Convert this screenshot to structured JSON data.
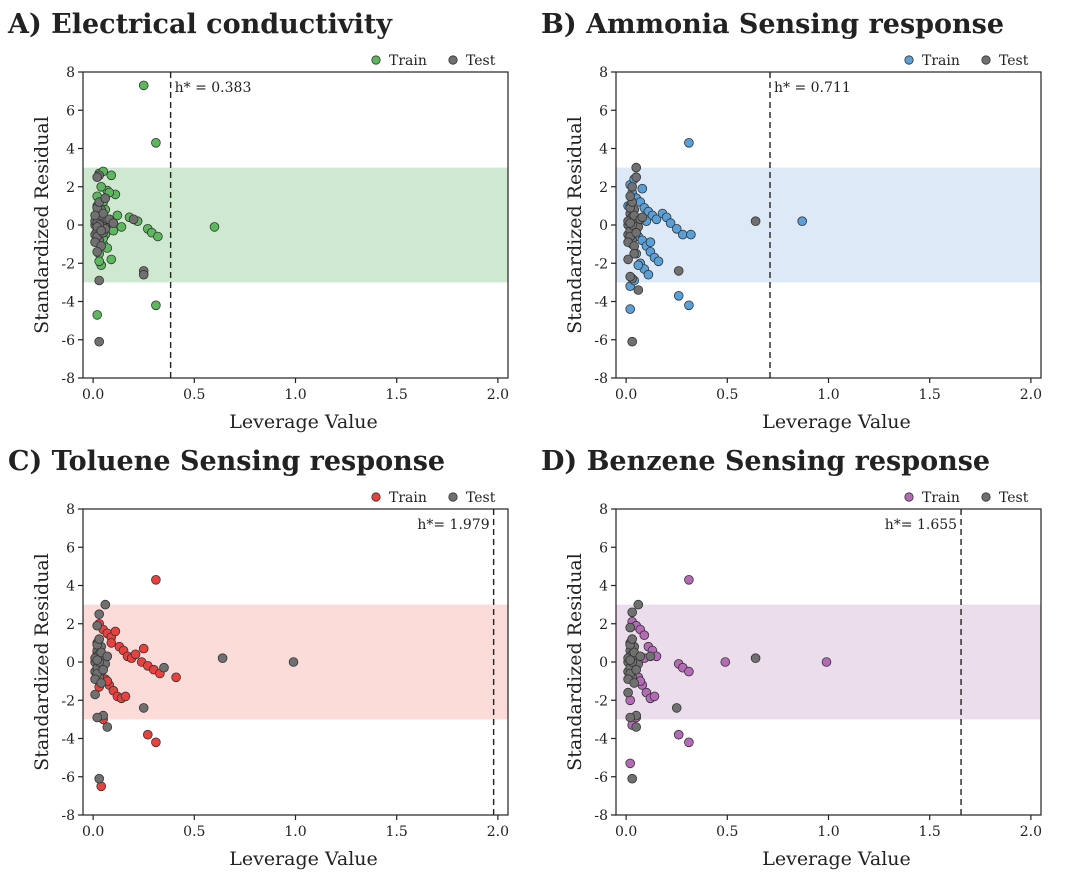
{
  "figure": {
    "shared_axes": {
      "xlabel": "Leverage Value",
      "ylabel": "Standardized Residual",
      "xticks": [
        "0.0",
        "0.5",
        "1.0",
        "1.5",
        "2.0"
      ],
      "yticks": [
        "8",
        "6",
        "4",
        "2",
        "0",
        "-2",
        "-4",
        "-6",
        "-8"
      ]
    },
    "legend": {
      "train_label": "Train",
      "test_label": "Test"
    }
  },
  "chart_data": [
    {
      "type": "scatter",
      "title": "A) Electrical conductivity",
      "xlabel": "Leverage Value",
      "ylabel": "Standardized Residual",
      "xlim": [
        -0.05,
        2.05
      ],
      "ylim": [
        -8,
        8
      ],
      "band": [
        -3,
        3
      ],
      "band_color": "#cfe9d0",
      "h_star": 0.383,
      "h_label": "h* = 0.383",
      "legend_position": "top-right",
      "series": [
        {
          "name": "Train",
          "color": "#5cb85c",
          "x": [
            0.25,
            0.31,
            0.03,
            0.05,
            0.09,
            0.07,
            0.11,
            0.02,
            0.05,
            0.06,
            0.08,
            0.12,
            0.04,
            0.03,
            0.06,
            0.1,
            0.14,
            0.02,
            0.05,
            0.07,
            0.09,
            0.03,
            0.04,
            0.18,
            0.22,
            0.27,
            0.29,
            0.32,
            0.6,
            0.04,
            0.06,
            0.02,
            0.03,
            0.05,
            0.08,
            0.03,
            0.04,
            0.31,
            0.02
          ],
          "y": [
            7.3,
            4.3,
            2.7,
            2.8,
            2.6,
            1.8,
            1.6,
            1.5,
            1.2,
            0.8,
            1.7,
            0.5,
            0.3,
            -0.2,
            -0.5,
            -0.3,
            -0.1,
            -0.8,
            -1.0,
            -1.2,
            -1.8,
            -1.5,
            -2.1,
            0.4,
            0.2,
            -0.2,
            -0.4,
            -0.6,
            -0.1,
            0.6,
            0.1,
            0.9,
            -1.9,
            -0.7,
            0.3,
            0.0,
            2.0,
            -4.2,
            -4.7
          ]
        },
        {
          "name": "Test",
          "color": "#707070",
          "x": [
            0.01,
            0.02,
            0.03,
            0.02,
            0.04,
            0.01,
            0.03,
            0.02,
            0.05,
            0.06,
            0.04,
            0.02,
            0.03,
            0.01,
            0.02,
            0.04,
            0.03,
            0.07,
            0.05,
            0.02,
            0.01,
            0.03,
            0.04,
            0.02,
            0.05,
            0.06,
            0.03,
            0.02,
            0.08,
            0.1,
            0.04,
            0.03,
            0.02,
            0.06,
            0.25,
            0.25,
            0.2,
            0.03,
            0.03,
            0.02,
            0.01
          ],
          "y": [
            0.0,
            0.3,
            -0.2,
            0.6,
            0.1,
            -0.5,
            0.4,
            -0.3,
            0.2,
            -0.1,
            0.8,
            1.0,
            -0.8,
            0.2,
            -0.6,
            0.5,
            0.0,
            0.3,
            -0.4,
            0.9,
            -0.9,
            1.2,
            -1.1,
            0.1,
            0.6,
            -0.2,
            0.0,
            -0.1,
            0.3,
            0.1,
            -0.3,
            2.6,
            2.5,
            1.4,
            -2.4,
            -2.6,
            0.3,
            -2.9,
            -6.1,
            -1.4,
            0.5
          ]
        }
      ]
    },
    {
      "type": "scatter",
      "title": "B) Ammonia Sensing response",
      "xlabel": "Leverage Value",
      "ylabel": "Standardized Residual",
      "xlim": [
        -0.05,
        2.05
      ],
      "ylim": [
        -8,
        8
      ],
      "band": [
        -3,
        3
      ],
      "band_color": "#dde9f6",
      "h_star": 0.711,
      "h_label": "h* = 0.711",
      "legend_position": "top-right",
      "series": [
        {
          "name": "Train",
          "color": "#5a9fd6",
          "x": [
            0.31,
            0.87,
            0.02,
            0.03,
            0.05,
            0.07,
            0.09,
            0.11,
            0.13,
            0.15,
            0.04,
            0.06,
            0.08,
            0.1,
            0.12,
            0.14,
            0.16,
            0.18,
            0.2,
            0.22,
            0.25,
            0.28,
            0.32,
            0.03,
            0.05,
            0.07,
            0.09,
            0.11,
            0.02,
            0.04,
            0.06,
            0.26,
            0.31,
            0.02,
            0.01,
            0.08,
            0.1,
            0.12,
            0.04,
            0.03
          ],
          "y": [
            4.3,
            0.2,
            2.1,
            1.7,
            1.4,
            1.2,
            0.9,
            0.7,
            0.5,
            0.3,
            -0.3,
            -0.6,
            -0.8,
            -1.1,
            -1.4,
            -1.7,
            -1.9,
            0.6,
            0.4,
            0.1,
            -0.2,
            -0.5,
            -0.5,
            -1.0,
            -1.5,
            -2.0,
            -2.3,
            -2.6,
            -3.2,
            -2.9,
            -2.1,
            -3.7,
            -4.2,
            -4.4,
            1.0,
            1.9,
            0.2,
            -0.9,
            2.4,
            0.8
          ]
        },
        {
          "name": "Test",
          "color": "#707070",
          "x": [
            0.64,
            0.01,
            0.02,
            0.03,
            0.02,
            0.04,
            0.01,
            0.03,
            0.02,
            0.05,
            0.06,
            0.04,
            0.02,
            0.03,
            0.01,
            0.02,
            0.04,
            0.03,
            0.07,
            0.05,
            0.02,
            0.01,
            0.03,
            0.04,
            0.02,
            0.05,
            0.06,
            0.03,
            0.02,
            0.05,
            0.03,
            0.26,
            0.02,
            0.04,
            0.03,
            0.01,
            0.08
          ],
          "y": [
            0.2,
            0.0,
            0.3,
            -0.2,
            0.6,
            0.1,
            -0.5,
            0.4,
            -0.3,
            0.2,
            -0.1,
            0.8,
            1.0,
            -0.8,
            0.2,
            -0.6,
            0.5,
            0.0,
            0.3,
            -0.4,
            0.9,
            -0.9,
            1.2,
            -1.1,
            0.1,
            3.0,
            -3.4,
            -2.8,
            -2.7,
            2.5,
            -6.1,
            -2.4,
            1.5,
            -1.5,
            2.0,
            -1.8,
            0.4
          ]
        }
      ]
    },
    {
      "type": "scatter",
      "title": "C) Toluene Sensing response",
      "xlabel": "Leverage Value",
      "ylabel": "Standardized Residual",
      "xlim": [
        -0.05,
        2.05
      ],
      "ylim": [
        -8,
        8
      ],
      "band": [
        -3,
        3
      ],
      "band_color": "#fbdcd9",
      "h_star": 1.979,
      "h_label": "h*= 1.979",
      "legend_position": "top-right",
      "series": [
        {
          "name": "Train",
          "color": "#e8413e",
          "x": [
            0.31,
            0.03,
            0.05,
            0.07,
            0.09,
            0.11,
            0.13,
            0.15,
            0.17,
            0.19,
            0.21,
            0.24,
            0.27,
            0.3,
            0.33,
            0.41,
            0.04,
            0.06,
            0.08,
            0.1,
            0.12,
            0.14,
            0.16,
            0.25,
            0.27,
            0.31,
            0.04,
            0.05,
            0.02,
            0.07,
            0.09,
            0.03
          ],
          "y": [
            4.3,
            2.0,
            1.7,
            1.5,
            1.3,
            1.6,
            0.8,
            0.6,
            0.3,
            0.2,
            0.4,
            0.0,
            -0.2,
            -0.4,
            -0.6,
            -0.8,
            -0.5,
            -0.9,
            -1.2,
            -1.5,
            -1.8,
            -1.9,
            -1.8,
            0.7,
            -3.8,
            -4.2,
            -6.5,
            -3.0,
            0.5,
            -1.0,
            1.0,
            -1.3
          ]
        },
        {
          "name": "Test",
          "color": "#707070",
          "x": [
            0.64,
            0.99,
            0.01,
            0.02,
            0.03,
            0.02,
            0.04,
            0.01,
            0.03,
            0.02,
            0.05,
            0.06,
            0.04,
            0.02,
            0.03,
            0.01,
            0.02,
            0.04,
            0.03,
            0.07,
            0.05,
            0.02,
            0.01,
            0.03,
            0.04,
            0.02,
            0.06,
            0.03,
            0.05,
            0.02,
            0.03,
            0.25,
            0.35,
            0.02,
            0.07,
            0.01
          ],
          "y": [
            0.2,
            0.0,
            0.0,
            0.3,
            -0.2,
            0.6,
            0.1,
            -0.5,
            0.4,
            -0.3,
            0.2,
            -0.1,
            0.8,
            1.0,
            -0.8,
            0.2,
            -0.6,
            0.5,
            0.0,
            0.3,
            -0.4,
            0.9,
            -0.9,
            1.2,
            -1.1,
            0.1,
            3.0,
            2.5,
            -2.8,
            -2.9,
            -6.1,
            -2.4,
            -0.3,
            1.9,
            -3.4,
            -1.7
          ]
        }
      ]
    },
    {
      "type": "scatter",
      "title": "D) Benzene Sensing response",
      "xlabel": "Leverage Value",
      "ylabel": "Standardized Residual",
      "xlim": [
        -0.05,
        2.05
      ],
      "ylim": [
        -8,
        8
      ],
      "band": [
        -3,
        3
      ],
      "band_color": "#ecdded",
      "h_star": 1.655,
      "h_label": "h*= 1.655",
      "legend_position": "top-right",
      "series": [
        {
          "name": "Train",
          "color": "#b36bb5",
          "x": [
            0.31,
            0.49,
            0.99,
            0.03,
            0.05,
            0.07,
            0.09,
            0.11,
            0.13,
            0.15,
            0.04,
            0.06,
            0.08,
            0.1,
            0.12,
            0.14,
            0.26,
            0.28,
            0.31,
            0.26,
            0.31,
            0.02,
            0.03,
            0.05,
            0.02,
            0.07,
            0.09
          ],
          "y": [
            4.3,
            0.0,
            0.0,
            2.1,
            1.9,
            1.7,
            1.4,
            0.8,
            0.6,
            0.3,
            -0.4,
            -0.8,
            -1.2,
            -1.6,
            -1.9,
            -1.8,
            -0.1,
            -0.3,
            -0.5,
            -3.8,
            -4.2,
            -5.3,
            -3.3,
            -2.9,
            -2.0,
            -1.0,
            0.2
          ]
        },
        {
          "name": "Test",
          "color": "#707070",
          "x": [
            0.64,
            0.01,
            0.02,
            0.03,
            0.02,
            0.04,
            0.01,
            0.03,
            0.02,
            0.05,
            0.06,
            0.04,
            0.02,
            0.03,
            0.01,
            0.02,
            0.04,
            0.03,
            0.07,
            0.05,
            0.02,
            0.01,
            0.03,
            0.04,
            0.02,
            0.06,
            0.03,
            0.05,
            0.02,
            0.03,
            0.25,
            0.12,
            0.02,
            0.05,
            0.01
          ],
          "y": [
            0.2,
            0.0,
            0.3,
            -0.2,
            0.6,
            0.1,
            -0.5,
            0.4,
            -0.3,
            0.2,
            -0.1,
            0.8,
            1.0,
            -0.8,
            0.2,
            -0.6,
            0.5,
            0.0,
            0.3,
            -0.4,
            0.9,
            -0.9,
            1.2,
            -1.1,
            0.1,
            3.0,
            2.6,
            -2.8,
            -2.9,
            -6.1,
            -2.4,
            0.3,
            1.8,
            -3.4,
            -1.6
          ]
        }
      ]
    }
  ]
}
